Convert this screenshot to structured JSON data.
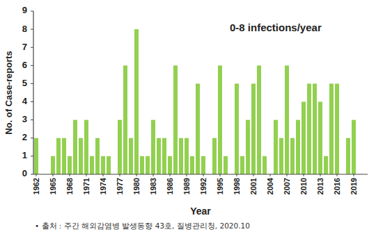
{
  "chart_data": {
    "type": "bar",
    "y_label": "No. of Case-reports",
    "x_label": "Year",
    "annotations": [
      "0-8 infections/year"
    ],
    "source": "• 출처 : 주간 해외감염병 발생동향 43호, 질병관리청, 2020.10",
    "categories": [
      "1962",
      null,
      null,
      "1965",
      null,
      null,
      "1968",
      null,
      null,
      "1971",
      null,
      null,
      "1974",
      null,
      null,
      "1977",
      null,
      null,
      "1980",
      null,
      null,
      "1983",
      null,
      null,
      "1986",
      null,
      null,
      "1989",
      null,
      null,
      "1992",
      null,
      null,
      "1995",
      null,
      null,
      "1998",
      null,
      null,
      "2001",
      null,
      null,
      "2004",
      null,
      null,
      "2007",
      null,
      null,
      "2010",
      null,
      null,
      "2013",
      null,
      null,
      "2016",
      null,
      null,
      "2019"
    ],
    "values": [
      2,
      0,
      0,
      1,
      2,
      2,
      1,
      3,
      2,
      3,
      1,
      2,
      1,
      1,
      0,
      3,
      6,
      2,
      8,
      1,
      1,
      3,
      2,
      2,
      1,
      6,
      2,
      2,
      1,
      5,
      1,
      0,
      2,
      6,
      1,
      0,
      5,
      1,
      3,
      5,
      6,
      1,
      0,
      3,
      2,
      6,
      2,
      3,
      4,
      5,
      5,
      4,
      1,
      5,
      5,
      0,
      2,
      3
    ],
    "color": "#92d050",
    "ylim": [
      0,
      9
    ],
    "yticks": [
      0,
      1,
      2,
      3,
      4,
      5,
      6,
      7,
      8,
      9
    ],
    "grid": false
  }
}
